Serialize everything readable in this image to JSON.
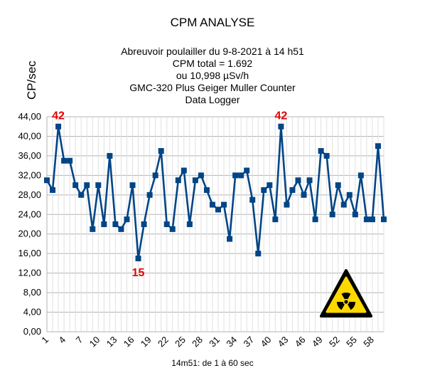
{
  "chart_data": {
    "type": "line",
    "title": "CPM ANALYSE",
    "subtitle_lines": [
      "Abreuvoir poulailler du 9-8-2021 à 14 h51",
      "CPM total = 1.692",
      "ou 10,998 µSv/h",
      "GMC-320 Plus Geiger Muller Counter",
      "Data Logger"
    ],
    "ylabel": "CP/sec",
    "xlabel": "14m51: de 1 à 60 sec",
    "ylim": [
      0,
      44
    ],
    "yticks": [
      "0,00",
      "4,00",
      "8,00",
      "12,00",
      "16,00",
      "20,00",
      "24,00",
      "28,00",
      "32,00",
      "36,00",
      "40,00",
      "44,00"
    ],
    "xticks": [
      "1",
      "4",
      "7",
      "10",
      "13",
      "16",
      "19",
      "22",
      "25",
      "28",
      "31",
      "34",
      "37",
      "40",
      "43",
      "46",
      "49",
      "52",
      "55",
      "58"
    ],
    "x": [
      1,
      2,
      3,
      4,
      5,
      6,
      7,
      8,
      9,
      10,
      11,
      12,
      13,
      14,
      15,
      16,
      17,
      18,
      19,
      20,
      21,
      22,
      23,
      24,
      25,
      26,
      27,
      28,
      29,
      30,
      31,
      32,
      33,
      34,
      35,
      36,
      37,
      38,
      39,
      40,
      41,
      42,
      43,
      44,
      45,
      46,
      47,
      48,
      49,
      50,
      51,
      52,
      53,
      54,
      55,
      56,
      57,
      58,
      59,
      60
    ],
    "series": [
      {
        "values": [
          31,
          29,
          42,
          35,
          35,
          30,
          28,
          30,
          21,
          30,
          22,
          36,
          22,
          21,
          23,
          30,
          15,
          22,
          28,
          32,
          37,
          22,
          21,
          31,
          33,
          22,
          31,
          32,
          29,
          26,
          25,
          26,
          19,
          32,
          32,
          33,
          27,
          16,
          29,
          30,
          23,
          42,
          26,
          29,
          31,
          28,
          31,
          23,
          37,
          36,
          24,
          30,
          26,
          28,
          24,
          32,
          23,
          23,
          38,
          23
        ],
        "color": "#004586"
      }
    ],
    "annotations": [
      {
        "x": 3,
        "y": 42,
        "text": "42"
      },
      {
        "x": 17,
        "y": 15,
        "text": "15"
      },
      {
        "x": 42,
        "y": 42,
        "text": "42"
      }
    ],
    "annotation_color": "#e00000",
    "grid": true,
    "legend": "none"
  },
  "icon": "radiation-warning-icon"
}
